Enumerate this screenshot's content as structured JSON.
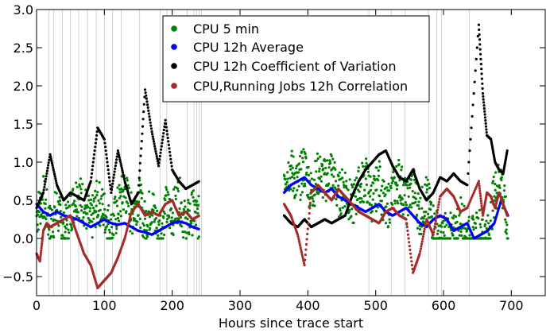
{
  "chart_data": {
    "type": "scatter",
    "title": "",
    "xlabel": "Hours since trace start",
    "ylabel": "",
    "xlim": [
      0,
      750
    ],
    "ylim": [
      -0.75,
      3.0
    ],
    "xticks": [
      0,
      100,
      200,
      300,
      400,
      500,
      600,
      700
    ],
    "yticks": [
      -0.5,
      0.0,
      0.5,
      1.0,
      1.5,
      2.0,
      2.5,
      3.0
    ],
    "xtick_labels": [
      "0",
      "100",
      "200",
      "300",
      "400",
      "500",
      "600",
      "700"
    ],
    "ytick_labels": [
      "−0.5",
      "0.0",
      "0.5",
      "1.0",
      "1.5",
      "2.0",
      "2.5",
      "3.0"
    ],
    "legend_position": "top-center",
    "vertical_lines_x": [
      18,
      25,
      38,
      50,
      62,
      75,
      88,
      100,
      112,
      125,
      152,
      182,
      192,
      222,
      232,
      236,
      240,
      243,
      490,
      523,
      543,
      578,
      590,
      597,
      638
    ],
    "gap": [
      245,
      362
    ],
    "series": [
      {
        "name": "CPU 5 min",
        "color": "#008000",
        "points": [
          [
            0,
            0.3
          ],
          [
            10,
            0.55
          ],
          [
            20,
            0.15
          ],
          [
            30,
            0.4
          ],
          [
            40,
            0.05
          ],
          [
            50,
            0.35
          ],
          [
            60,
            0.6
          ],
          [
            70,
            0.45
          ],
          [
            80,
            0.2
          ],
          [
            90,
            0.5
          ],
          [
            100,
            0.35
          ],
          [
            110,
            0.1
          ],
          [
            120,
            0.4
          ],
          [
            130,
            0.65
          ],
          [
            140,
            0.3
          ],
          [
            150,
            0.55
          ],
          [
            160,
            0.2
          ],
          [
            170,
            0.45
          ],
          [
            180,
            0.05
          ],
          [
            190,
            0.4
          ],
          [
            200,
            0.3
          ],
          [
            210,
            0.55
          ],
          [
            220,
            0.15
          ],
          [
            230,
            0.35
          ],
          [
            240,
            0.25
          ],
          [
            365,
            0.85
          ],
          [
            375,
            0.9
          ],
          [
            385,
            0.7
          ],
          [
            395,
            0.95
          ],
          [
            405,
            0.6
          ],
          [
            415,
            0.85
          ],
          [
            425,
            0.75
          ],
          [
            435,
            0.9
          ],
          [
            445,
            0.55
          ],
          [
            455,
            0.7
          ],
          [
            465,
            0.4
          ],
          [
            475,
            0.65
          ],
          [
            485,
            0.8
          ],
          [
            495,
            0.5
          ],
          [
            505,
            0.75
          ],
          [
            515,
            0.35
          ],
          [
            525,
            0.6
          ],
          [
            535,
            0.8
          ],
          [
            545,
            0.45
          ],
          [
            555,
            0.7
          ],
          [
            565,
            0.3
          ],
          [
            575,
            0.55
          ],
          [
            585,
            0.2
          ],
          [
            595,
            0.0
          ],
          [
            605,
            0.1
          ],
          [
            615,
            0.0
          ],
          [
            625,
            0.3
          ],
          [
            635,
            0.0
          ],
          [
            645,
            0.0
          ],
          [
            655,
            0.15
          ],
          [
            665,
            0.0
          ],
          [
            675,
            0.6
          ],
          [
            685,
            0.8
          ],
          [
            695,
            0.0
          ]
        ]
      },
      {
        "name": "CPU 12h Average",
        "color": "#0000ff",
        "points": [
          [
            0,
            0.45
          ],
          [
            10,
            0.35
          ],
          [
            20,
            0.3
          ],
          [
            30,
            0.35
          ],
          [
            40,
            0.3
          ],
          [
            50,
            0.28
          ],
          [
            60,
            0.25
          ],
          [
            70,
            0.2
          ],
          [
            80,
            0.15
          ],
          [
            90,
            0.2
          ],
          [
            100,
            0.25
          ],
          [
            110,
            0.2
          ],
          [
            120,
            0.18
          ],
          [
            130,
            0.2
          ],
          [
            140,
            0.15
          ],
          [
            150,
            0.1
          ],
          [
            160,
            0.08
          ],
          [
            170,
            0.05
          ],
          [
            180,
            0.1
          ],
          [
            190,
            0.15
          ],
          [
            200,
            0.2
          ],
          [
            210,
            0.22
          ],
          [
            220,
            0.2
          ],
          [
            230,
            0.15
          ],
          [
            240,
            0.12
          ],
          [
            365,
            0.6
          ],
          [
            375,
            0.7
          ],
          [
            385,
            0.75
          ],
          [
            395,
            0.8
          ],
          [
            405,
            0.7
          ],
          [
            415,
            0.65
          ],
          [
            425,
            0.6
          ],
          [
            435,
            0.65
          ],
          [
            445,
            0.55
          ],
          [
            455,
            0.5
          ],
          [
            465,
            0.45
          ],
          [
            475,
            0.4
          ],
          [
            485,
            0.35
          ],
          [
            495,
            0.4
          ],
          [
            505,
            0.45
          ],
          [
            515,
            0.35
          ],
          [
            525,
            0.3
          ],
          [
            535,
            0.35
          ],
          [
            545,
            0.4
          ],
          [
            555,
            0.3
          ],
          [
            565,
            0.2
          ],
          [
            575,
            0.15
          ],
          [
            585,
            0.25
          ],
          [
            595,
            0.3
          ],
          [
            605,
            0.25
          ],
          [
            615,
            0.1
          ],
          [
            625,
            0.15
          ],
          [
            635,
            0.2
          ],
          [
            645,
            0.0
          ],
          [
            655,
            0.05
          ],
          [
            665,
            0.1
          ],
          [
            675,
            0.2
          ],
          [
            685,
            0.5
          ],
          [
            695,
            0.3
          ]
        ]
      },
      {
        "name": "CPU 12h Coefficient of Variation",
        "color": "#000000",
        "points": [
          [
            0,
            0.4
          ],
          [
            10,
            0.6
          ],
          [
            20,
            1.1
          ],
          [
            30,
            0.7
          ],
          [
            40,
            0.5
          ],
          [
            50,
            0.6
          ],
          [
            60,
            0.55
          ],
          [
            70,
            0.5
          ],
          [
            80,
            0.75
          ],
          [
            90,
            1.45
          ],
          [
            100,
            1.3
          ],
          [
            110,
            0.6
          ],
          [
            120,
            1.15
          ],
          [
            130,
            0.75
          ],
          [
            140,
            0.45
          ],
          [
            150,
            0.6
          ],
          [
            160,
            1.95
          ],
          [
            170,
            1.4
          ],
          [
            180,
            0.95
          ],
          [
            190,
            1.55
          ],
          [
            200,
            0.9
          ],
          [
            210,
            0.75
          ],
          [
            220,
            0.65
          ],
          [
            230,
            0.7
          ],
          [
            240,
            0.75
          ],
          [
            365,
            0.3
          ],
          [
            375,
            0.2
          ],
          [
            385,
            0.15
          ],
          [
            395,
            0.25
          ],
          [
            405,
            0.15
          ],
          [
            415,
            0.2
          ],
          [
            425,
            0.25
          ],
          [
            435,
            0.2
          ],
          [
            445,
            0.25
          ],
          [
            455,
            0.3
          ],
          [
            465,
            0.55
          ],
          [
            475,
            0.75
          ],
          [
            485,
            0.9
          ],
          [
            495,
            1.0
          ],
          [
            505,
            1.1
          ],
          [
            515,
            1.15
          ],
          [
            525,
            0.95
          ],
          [
            535,
            0.8
          ],
          [
            545,
            0.75
          ],
          [
            555,
            0.9
          ],
          [
            565,
            0.65
          ],
          [
            575,
            0.5
          ],
          [
            585,
            0.6
          ],
          [
            595,
            0.8
          ],
          [
            605,
            0.75
          ],
          [
            615,
            0.85
          ],
          [
            625,
            0.75
          ],
          [
            635,
            0.7
          ],
          [
            652,
            2.8
          ],
          [
            658,
            1.9
          ],
          [
            664,
            1.35
          ],
          [
            670,
            1.3
          ],
          [
            676,
            1.0
          ],
          [
            682,
            0.9
          ],
          [
            688,
            0.85
          ],
          [
            694,
            1.15
          ]
        ]
      },
      {
        "name": "CPU,Running Jobs 12h Correlation",
        "color": "#a52a2a",
        "points": [
          [
            0,
            -0.2
          ],
          [
            5,
            -0.3
          ],
          [
            10,
            0.1
          ],
          [
            15,
            0.2
          ],
          [
            20,
            0.15
          ],
          [
            30,
            0.2
          ],
          [
            40,
            0.25
          ],
          [
            50,
            0.3
          ],
          [
            60,
            0.05
          ],
          [
            70,
            -0.2
          ],
          [
            80,
            -0.35
          ],
          [
            90,
            -0.65
          ],
          [
            100,
            -0.55
          ],
          [
            110,
            -0.45
          ],
          [
            120,
            -0.25
          ],
          [
            130,
            0.0
          ],
          [
            140,
            0.35
          ],
          [
            150,
            0.45
          ],
          [
            160,
            0.3
          ],
          [
            170,
            0.35
          ],
          [
            180,
            0.3
          ],
          [
            190,
            0.45
          ],
          [
            200,
            0.5
          ],
          [
            210,
            0.3
          ],
          [
            220,
            0.35
          ],
          [
            230,
            0.25
          ],
          [
            240,
            0.3
          ],
          [
            365,
            0.45
          ],
          [
            375,
            0.3
          ],
          [
            385,
            0.05
          ],
          [
            395,
            -0.35
          ],
          [
            405,
            0.6
          ],
          [
            415,
            0.7
          ],
          [
            425,
            0.6
          ],
          [
            435,
            0.5
          ],
          [
            445,
            0.65
          ],
          [
            455,
            0.55
          ],
          [
            465,
            0.45
          ],
          [
            475,
            0.35
          ],
          [
            485,
            0.3
          ],
          [
            495,
            0.25
          ],
          [
            505,
            0.2
          ],
          [
            515,
            0.35
          ],
          [
            525,
            0.4
          ],
          [
            535,
            0.3
          ],
          [
            545,
            0.25
          ],
          [
            555,
            -0.45
          ],
          [
            565,
            -0.2
          ],
          [
            575,
            0.25
          ],
          [
            585,
            0.05
          ],
          [
            595,
            0.55
          ],
          [
            605,
            0.65
          ],
          [
            615,
            0.55
          ],
          [
            625,
            0.35
          ],
          [
            635,
            0.4
          ],
          [
            652,
            0.75
          ],
          [
            658,
            0.3
          ],
          [
            664,
            0.6
          ],
          [
            670,
            0.55
          ],
          [
            676,
            0.4
          ],
          [
            682,
            0.6
          ],
          [
            688,
            0.45
          ],
          [
            694,
            0.3
          ]
        ]
      }
    ]
  }
}
